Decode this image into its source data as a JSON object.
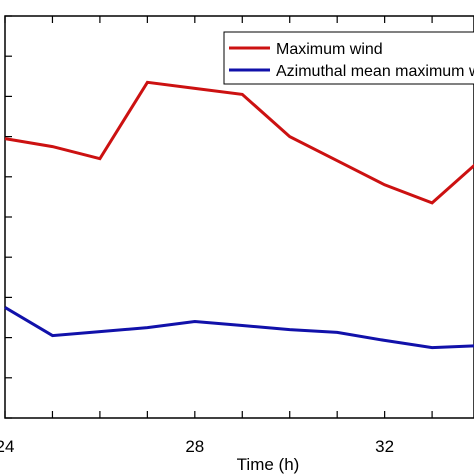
{
  "chart_data": {
    "type": "line",
    "title": "",
    "xlabel": "Time (h)",
    "ylabel": "",
    "xlim": [
      24,
      35
    ],
    "ylim": [
      0,
      100
    ],
    "xticks": [
      24,
      25,
      26,
      27,
      28,
      29,
      30,
      31,
      32,
      33,
      34,
      35
    ],
    "xtick_labels": [
      "24",
      "28",
      "32"
    ],
    "yticks": [
      0,
      10,
      20,
      30,
      40,
      50,
      60,
      70,
      80,
      90,
      100
    ],
    "grid": false,
    "legend_position": "top-right",
    "series": [
      {
        "name": "Maximum wind",
        "color": "#cc1111",
        "x": [
          24,
          25,
          26,
          27,
          28,
          29,
          30,
          31,
          32,
          33,
          34,
          35
        ],
        "y": [
          69.5,
          67.5,
          64.5,
          83.5,
          82,
          80.5,
          70,
          64,
          58,
          53.5,
          64,
          69
        ]
      },
      {
        "name": "Azimuthal mean maximum wind",
        "color": "#1111aa",
        "x": [
          24,
          25,
          26,
          27,
          28,
          29,
          30,
          31,
          32,
          33,
          34,
          35
        ],
        "y": [
          27.5,
          20.5,
          21.5,
          22.5,
          24,
          23,
          22,
          21.3,
          19.3,
          17.5,
          18,
          18.2
        ]
      }
    ]
  }
}
